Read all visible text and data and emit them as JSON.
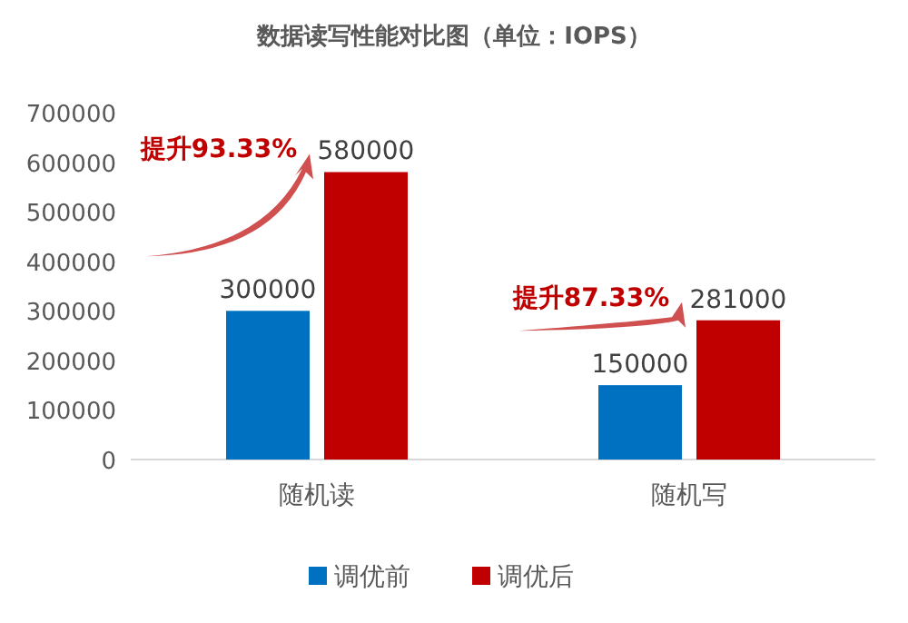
{
  "chart_data": {
    "type": "bar",
    "title": "数据读写性能对比图（单位：IOPS）",
    "categories": [
      "随机读",
      "随机写"
    ],
    "series": [
      {
        "name": "调优前",
        "color": "#0070c0",
        "values": [
          300000,
          150000
        ]
      },
      {
        "name": "调优后",
        "color": "#c00000",
        "values": [
          580000,
          281000
        ]
      }
    ],
    "ylim": [
      0,
      700000
    ],
    "yticks": [
      0,
      100000,
      200000,
      300000,
      400000,
      500000,
      600000,
      700000
    ],
    "data_labels": true,
    "legend": "bottom",
    "grid": false,
    "annotations": [
      "提升93.33%",
      "提升87.33%"
    ]
  }
}
